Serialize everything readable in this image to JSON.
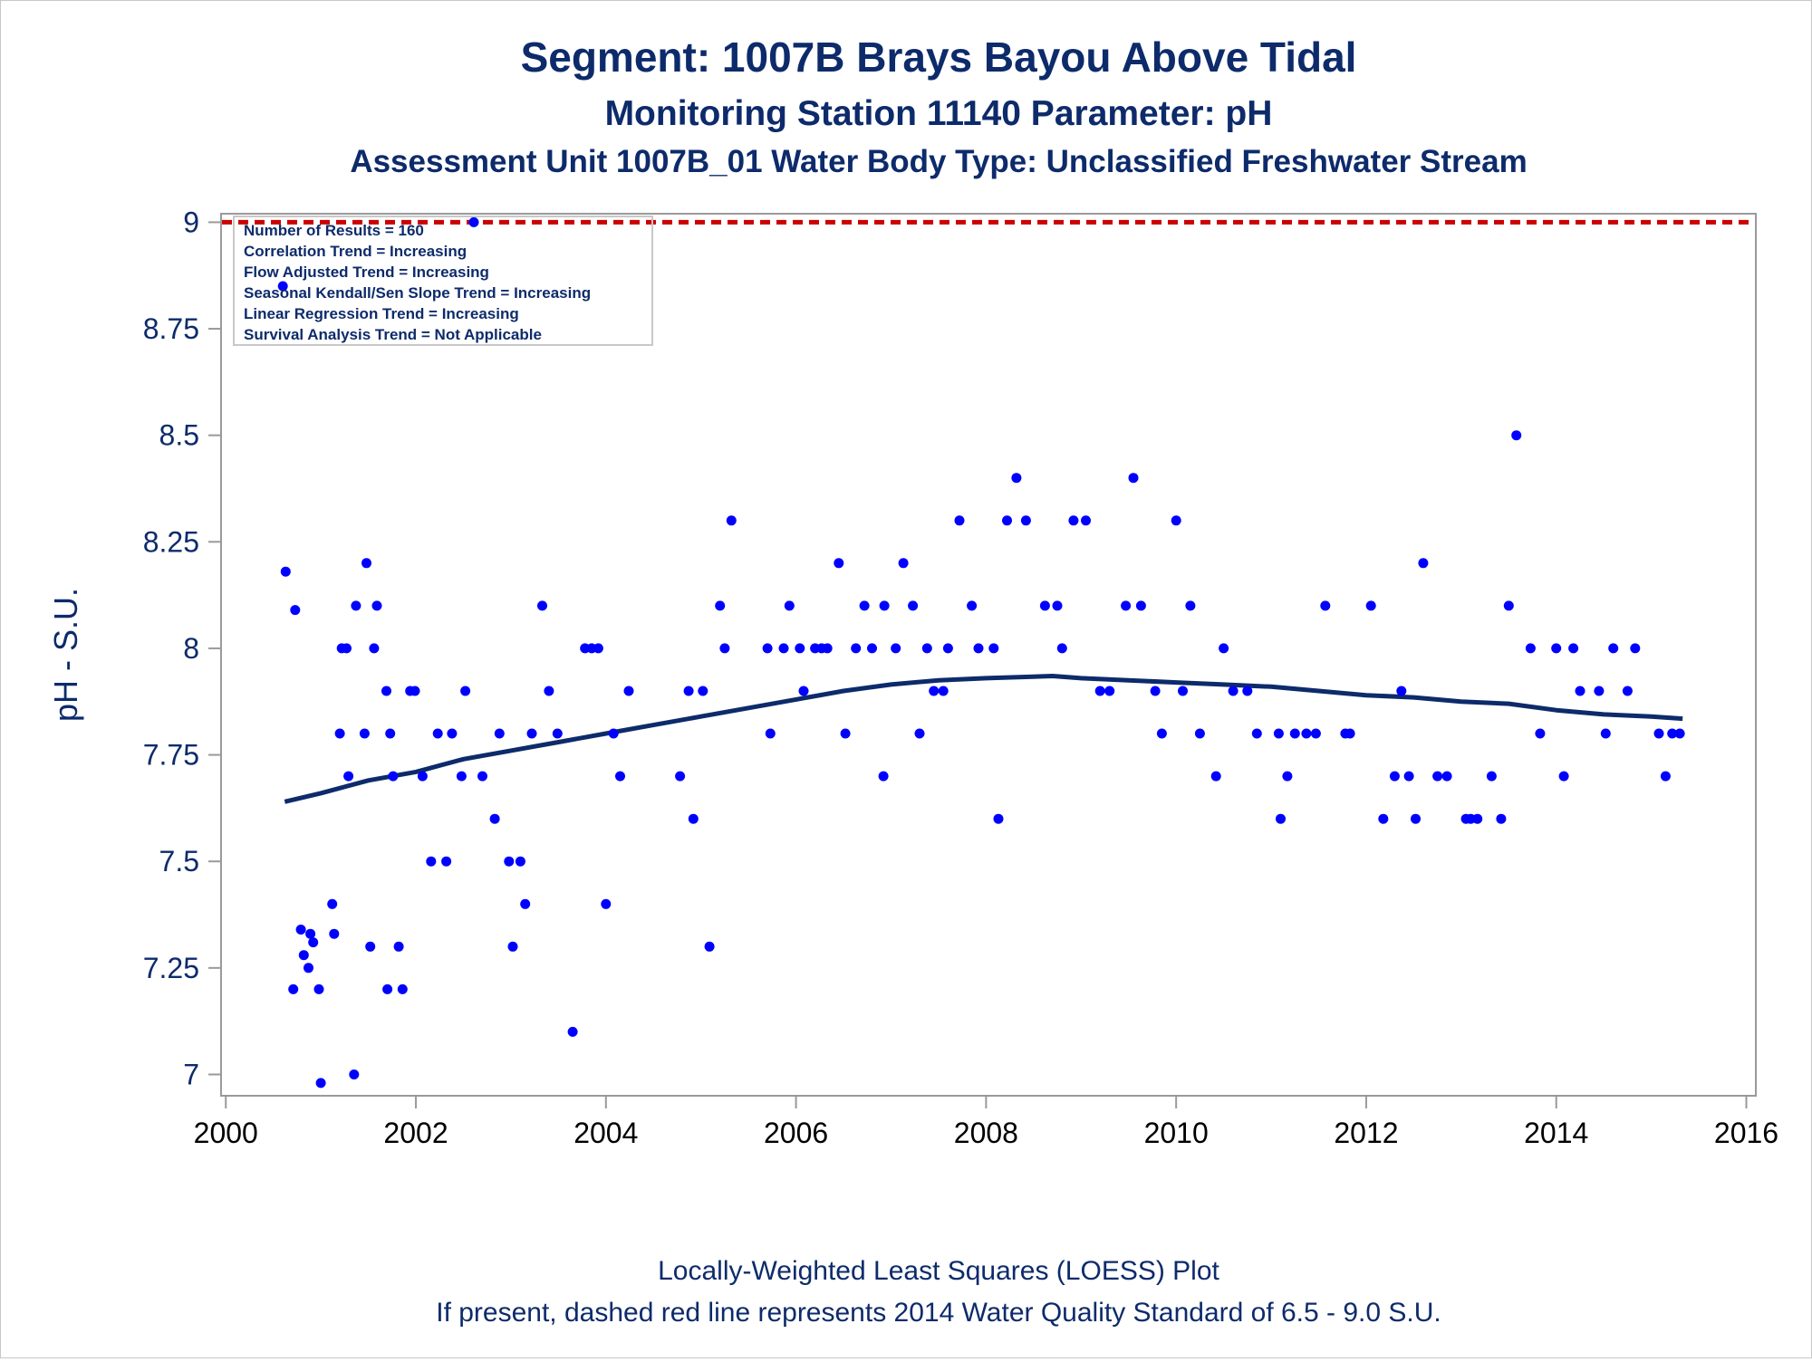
{
  "title": {
    "line1": "Segment: 1007B  Brays Bayou Above Tidal",
    "line2": "Monitoring Station 11140 Parameter: pH",
    "line3": "Assessment Unit 1007B_01   Water Body Type: Unclassified Freshwater Stream"
  },
  "ylabel": "pH - S.U.",
  "footer": {
    "line1": "Locally-Weighted Least Squares (LOESS) Plot",
    "line2": "If present, dashed red line represents 2014 Water Quality Standard of 6.5 - 9.0 S.U."
  },
  "stats": [
    "Number of Results = 160",
    "Correlation Trend = Increasing",
    "Flow Adjusted Trend = Increasing",
    "Seasonal Kendall/Sen Slope Trend = Increasing",
    "Linear Regression Trend = Increasing",
    "Survival Analysis Trend = Not Applicable"
  ],
  "colors": {
    "points": "#0000ff",
    "loess": "#0d2b6b",
    "standard": "#cc0000",
    "text": "#0d2b6b",
    "axis": "#9a9a9a"
  },
  "chart_data": {
    "type": "scatter",
    "xlim": [
      1999.95,
      2016.1
    ],
    "ylim": [
      6.95,
      9.02
    ],
    "x_ticks": [
      2000,
      2002,
      2004,
      2006,
      2008,
      2010,
      2012,
      2014,
      2016
    ],
    "x_tick_labels": [
      "2000",
      "2002",
      "2004",
      "2006",
      "2008",
      "2010",
      "2012",
      "2014",
      "2016"
    ],
    "y_ticks": [
      7,
      7.25,
      7.5,
      7.75,
      8,
      8.25,
      8.5,
      8.75,
      9
    ],
    "y_tick_labels": [
      "7",
      "7.25",
      "7.5",
      "7.75",
      "8",
      "8.25",
      "8.5",
      "8.75",
      "9"
    ],
    "standard_line": 9.0,
    "series": [
      {
        "type": "scatter",
        "points": [
          [
            2000.63,
            8.18
          ],
          [
            2000.73,
            8.09
          ],
          [
            2000.71,
            7.2
          ],
          [
            2000.79,
            7.34
          ],
          [
            2000.82,
            7.28
          ],
          [
            2000.87,
            7.25
          ],
          [
            2000.89,
            7.33
          ],
          [
            2000.92,
            7.31
          ],
          [
            2000.98,
            7.2
          ],
          [
            2001.0,
            6.98
          ],
          [
            2001.12,
            7.4
          ],
          [
            2001.14,
            7.33
          ],
          [
            2001.2,
            7.8
          ],
          [
            2001.22,
            8.0
          ],
          [
            2001.27,
            8.0
          ],
          [
            2001.29,
            7.7
          ],
          [
            2001.35,
            7.0
          ],
          [
            2001.37,
            8.1
          ],
          [
            2001.46,
            7.8
          ],
          [
            2001.48,
            8.2
          ],
          [
            2001.52,
            7.3
          ],
          [
            2001.56,
            8.0
          ],
          [
            2001.59,
            8.1
          ],
          [
            2001.69,
            7.9
          ],
          [
            2001.7,
            7.2
          ],
          [
            2001.73,
            7.8
          ],
          [
            2001.76,
            7.7
          ],
          [
            2001.82,
            7.3
          ],
          [
            2001.86,
            7.2
          ],
          [
            2001.94,
            7.9
          ],
          [
            2001.99,
            7.9
          ],
          [
            2002.07,
            7.7
          ],
          [
            2002.16,
            7.5
          ],
          [
            2002.23,
            7.8
          ],
          [
            2002.32,
            7.5
          ],
          [
            2002.38,
            7.8
          ],
          [
            2002.48,
            7.7
          ],
          [
            2002.52,
            7.9
          ],
          [
            2002.61,
            9.0
          ],
          [
            2002.7,
            7.7
          ],
          [
            2002.83,
            7.6
          ],
          [
            2002.88,
            7.8
          ],
          [
            2002.98,
            7.5
          ],
          [
            2003.02,
            7.3
          ],
          [
            2003.1,
            7.5
          ],
          [
            2003.15,
            7.4
          ],
          [
            2003.22,
            7.8
          ],
          [
            2003.33,
            8.1
          ],
          [
            2003.4,
            7.9
          ],
          [
            2003.49,
            7.8
          ],
          [
            2003.65,
            7.1
          ],
          [
            2003.78,
            8.0
          ],
          [
            2003.85,
            8.0
          ],
          [
            2003.92,
            8.0
          ],
          [
            2004.0,
            7.4
          ],
          [
            2004.08,
            7.8
          ],
          [
            2004.15,
            7.7
          ],
          [
            2004.24,
            7.9
          ],
          [
            2004.78,
            7.7
          ],
          [
            2004.87,
            7.9
          ],
          [
            2004.92,
            7.6
          ],
          [
            2005.02,
            7.9
          ],
          [
            2005.09,
            7.3
          ],
          [
            2005.2,
            8.1
          ],
          [
            2005.25,
            8.0
          ],
          [
            2005.32,
            8.3
          ],
          [
            2005.7,
            8.0
          ],
          [
            2005.73,
            7.8
          ],
          [
            2005.87,
            8.0
          ],
          [
            2005.93,
            8.1
          ],
          [
            2006.04,
            8.0
          ],
          [
            2006.08,
            7.9
          ],
          [
            2006.2,
            8.0
          ],
          [
            2006.27,
            8.0
          ],
          [
            2006.33,
            8.0
          ],
          [
            2006.45,
            8.2
          ],
          [
            2006.52,
            7.8
          ],
          [
            2006.63,
            8.0
          ],
          [
            2006.72,
            8.1
          ],
          [
            2006.8,
            8.0
          ],
          [
            2006.92,
            7.7
          ],
          [
            2006.93,
            8.1
          ],
          [
            2007.05,
            8.0
          ],
          [
            2007.13,
            8.2
          ],
          [
            2007.23,
            8.1
          ],
          [
            2007.3,
            7.8
          ],
          [
            2007.38,
            8.0
          ],
          [
            2007.45,
            7.9
          ],
          [
            2007.55,
            7.9
          ],
          [
            2007.6,
            8.0
          ],
          [
            2007.72,
            8.3
          ],
          [
            2007.85,
            8.1
          ],
          [
            2007.92,
            8.0
          ],
          [
            2008.08,
            8.0
          ],
          [
            2008.13,
            7.6
          ],
          [
            2008.22,
            8.3
          ],
          [
            2008.32,
            8.4
          ],
          [
            2008.42,
            8.3
          ],
          [
            2008.62,
            8.1
          ],
          [
            2008.75,
            8.1
          ],
          [
            2008.8,
            8.0
          ],
          [
            2008.92,
            8.3
          ],
          [
            2009.05,
            8.3
          ],
          [
            2009.2,
            7.9
          ],
          [
            2009.3,
            7.9
          ],
          [
            2009.47,
            8.1
          ],
          [
            2009.55,
            8.4
          ],
          [
            2009.63,
            8.1
          ],
          [
            2009.78,
            7.9
          ],
          [
            2009.85,
            7.8
          ],
          [
            2010.0,
            8.3
          ],
          [
            2010.07,
            7.9
          ],
          [
            2010.15,
            8.1
          ],
          [
            2010.25,
            7.8
          ],
          [
            2010.42,
            7.7
          ],
          [
            2010.5,
            8.0
          ],
          [
            2010.6,
            7.9
          ],
          [
            2010.75,
            7.9
          ],
          [
            2010.85,
            7.8
          ],
          [
            2011.08,
            7.8
          ],
          [
            2011.1,
            7.6
          ],
          [
            2011.17,
            7.7
          ],
          [
            2011.25,
            7.8
          ],
          [
            2011.37,
            7.8
          ],
          [
            2011.47,
            7.8
          ],
          [
            2011.57,
            8.1
          ],
          [
            2011.78,
            7.8
          ],
          [
            2011.83,
            7.8
          ],
          [
            2012.05,
            8.1
          ],
          [
            2012.18,
            7.6
          ],
          [
            2012.3,
            7.7
          ],
          [
            2012.37,
            7.9
          ],
          [
            2012.45,
            7.7
          ],
          [
            2012.52,
            7.6
          ],
          [
            2012.6,
            8.2
          ],
          [
            2012.75,
            7.7
          ],
          [
            2012.85,
            7.7
          ],
          [
            2013.05,
            7.6
          ],
          [
            2013.1,
            7.6
          ],
          [
            2013.17,
            7.6
          ],
          [
            2013.32,
            7.7
          ],
          [
            2013.42,
            7.6
          ],
          [
            2013.5,
            8.1
          ],
          [
            2013.58,
            8.5
          ],
          [
            2013.73,
            8.0
          ],
          [
            2013.83,
            7.8
          ],
          [
            2014.0,
            8.0
          ],
          [
            2014.08,
            7.7
          ],
          [
            2014.18,
            8.0
          ],
          [
            2014.25,
            7.9
          ],
          [
            2014.45,
            7.9
          ],
          [
            2014.52,
            7.8
          ],
          [
            2014.6,
            8.0
          ],
          [
            2014.75,
            7.9
          ],
          [
            2014.83,
            8.0
          ],
          [
            2015.08,
            7.8
          ],
          [
            2015.15,
            7.7
          ],
          [
            2015.22,
            7.8
          ],
          [
            2015.3,
            7.8
          ],
          [
            2000.6,
            8.85
          ]
        ]
      },
      {
        "type": "line",
        "points": [
          [
            2000.62,
            7.64
          ],
          [
            2001.0,
            7.66
          ],
          [
            2001.5,
            7.69
          ],
          [
            2002.0,
            7.71
          ],
          [
            2002.5,
            7.74
          ],
          [
            2003.0,
            7.76
          ],
          [
            2003.5,
            7.78
          ],
          [
            2004.0,
            7.8
          ],
          [
            2004.5,
            7.82
          ],
          [
            2005.0,
            7.84
          ],
          [
            2005.5,
            7.86
          ],
          [
            2006.0,
            7.88
          ],
          [
            2006.5,
            7.9
          ],
          [
            2007.0,
            7.915
          ],
          [
            2007.5,
            7.925
          ],
          [
            2008.0,
            7.93
          ],
          [
            2008.7,
            7.935
          ],
          [
            2009.0,
            7.93
          ],
          [
            2009.5,
            7.925
          ],
          [
            2010.0,
            7.92
          ],
          [
            2010.5,
            7.915
          ],
          [
            2011.0,
            7.91
          ],
          [
            2011.5,
            7.9
          ],
          [
            2012.0,
            7.89
          ],
          [
            2012.5,
            7.885
          ],
          [
            2013.0,
            7.875
          ],
          [
            2013.5,
            7.87
          ],
          [
            2014.0,
            7.855
          ],
          [
            2014.5,
            7.845
          ],
          [
            2015.0,
            7.84
          ],
          [
            2015.33,
            7.835
          ]
        ]
      }
    ]
  }
}
